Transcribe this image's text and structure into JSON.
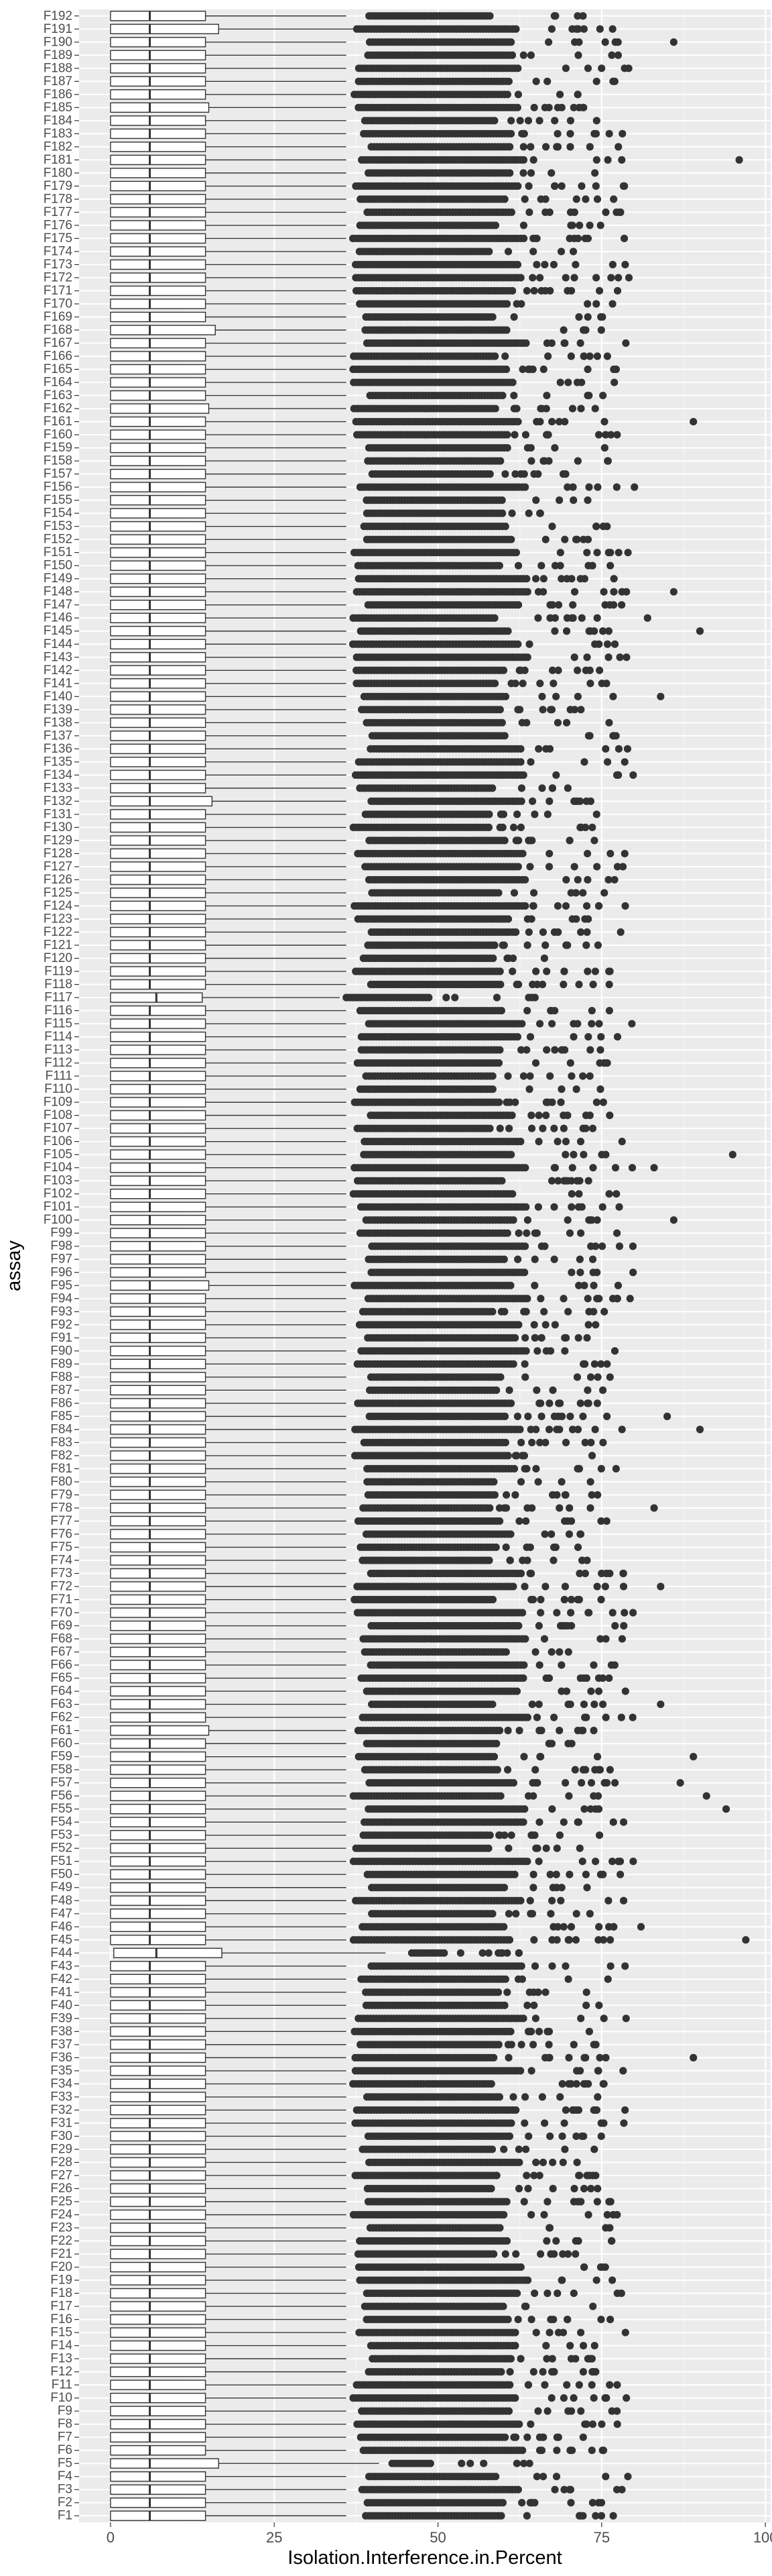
{
  "chart_data": {
    "type": "boxplot",
    "orientation": "horizontal",
    "xlabel": "Isolation.Interference.in.Percent",
    "ylabel": "assay",
    "xlim": [
      -4.8,
      100.8
    ],
    "x_ticks": [
      0,
      25,
      50,
      75,
      100
    ],
    "grid": true,
    "legend": "none",
    "categories_bottom_to_top": [
      "F1",
      "F2",
      "F3",
      "F4",
      "F5",
      "F6",
      "F7",
      "F8",
      "F9",
      "F10",
      "F11",
      "F12",
      "F13",
      "F14",
      "F15",
      "F16",
      "F17",
      "F18",
      "F19",
      "F20",
      "F21",
      "F22",
      "F23",
      "F24",
      "F25",
      "F26",
      "F27",
      "F28",
      "F29",
      "F30",
      "F31",
      "F32",
      "F33",
      "F34",
      "F35",
      "F36",
      "F37",
      "F38",
      "F39",
      "F40",
      "F41",
      "F42",
      "F43",
      "F44",
      "F45",
      "F46",
      "F47",
      "F48",
      "F49",
      "F50",
      "F51",
      "F52",
      "F53",
      "F54",
      "F55",
      "F56",
      "F57",
      "F58",
      "F59",
      "F60",
      "F61",
      "F62",
      "F63",
      "F64",
      "F65",
      "F66",
      "F67",
      "F68",
      "F69",
      "F70",
      "F71",
      "F72",
      "F73",
      "F74",
      "F75",
      "F76",
      "F77",
      "F78",
      "F79",
      "F80",
      "F81",
      "F82",
      "F83",
      "F84",
      "F85",
      "F86",
      "F87",
      "F88",
      "F89",
      "F90",
      "F91",
      "F92",
      "F93",
      "F94",
      "F95",
      "F96",
      "F97",
      "F98",
      "F99",
      "F100",
      "F101",
      "F102",
      "F103",
      "F104",
      "F105",
      "F106",
      "F107",
      "F108",
      "F109",
      "F110",
      "F111",
      "F112",
      "F113",
      "F114",
      "F115",
      "F116",
      "F117",
      "F118",
      "F119",
      "F120",
      "F121",
      "F122",
      "F123",
      "F124",
      "F125",
      "F126",
      "F127",
      "F128",
      "F129",
      "F130",
      "F131",
      "F132",
      "F133",
      "F134",
      "F135",
      "F136",
      "F137",
      "F138",
      "F139",
      "F140",
      "F141",
      "F142",
      "F143",
      "F144",
      "F145",
      "F146",
      "F147",
      "F148",
      "F149",
      "F150",
      "F151",
      "F152",
      "F153",
      "F154",
      "F155",
      "F156",
      "F157",
      "F158",
      "F159",
      "F160",
      "F161",
      "F162",
      "F163",
      "F164",
      "F165",
      "F166",
      "F167",
      "F168",
      "F169",
      "F170",
      "F171",
      "F172",
      "F173",
      "F174",
      "F175",
      "F176",
      "F177",
      "F178",
      "F179",
      "F180",
      "F181",
      "F182",
      "F183",
      "F184",
      "F185",
      "F186",
      "F187",
      "F188",
      "F189",
      "F190",
      "F191",
      "F192"
    ],
    "box_typical": {
      "min": 0,
      "q1": 0,
      "median": 6,
      "q3": 14.5,
      "whisker_hi": 36
    },
    "box_overrides": {
      "F5": {
        "q3": 16.5,
        "whisker_hi": 41,
        "outlier_start": 43,
        "outlier_end": 49
      },
      "F44": {
        "q1": 0.5,
        "median": 7,
        "q3": 17,
        "whisker_hi": 42,
        "outlier_start": 46,
        "outlier_end": 51
      },
      "F117": {
        "median": 7,
        "q3": 14,
        "whisker_hi": 35,
        "outlier_start": 36,
        "outlier_end": 49
      },
      "F132": {
        "q3": 15.5
      },
      "F168": {
        "q3": 16
      },
      "F191": {
        "q3": 16.5,
        "whisker_hi": 41
      },
      "F185": {
        "q3": 15
      },
      "F61": {
        "q3": 15
      },
      "F95": {
        "q3": 15
      },
      "F162": {
        "q3": 15
      }
    },
    "far_outliers": {
      "F4": [
        79
      ],
      "F36": [
        89
      ],
      "F45": [
        97
      ],
      "F46": [
        81
      ],
      "F55": [
        94
      ],
      "F56": [
        91
      ],
      "F57": [
        87
      ],
      "F59": [
        89
      ],
      "F63": [
        84
      ],
      "F72": [
        84
      ],
      "F78": [
        83
      ],
      "F84": [
        90
      ],
      "F85": [
        85
      ],
      "F100": [
        86
      ],
      "F104": [
        83
      ],
      "F105": [
        95
      ],
      "F140": [
        84
      ],
      "F145": [
        90
      ],
      "F146": [
        82
      ],
      "F148": [
        86
      ],
      "F156": [
        80
      ],
      "F161": [
        89
      ],
      "F181": [
        96
      ],
      "F190": [
        86
      ]
    }
  }
}
